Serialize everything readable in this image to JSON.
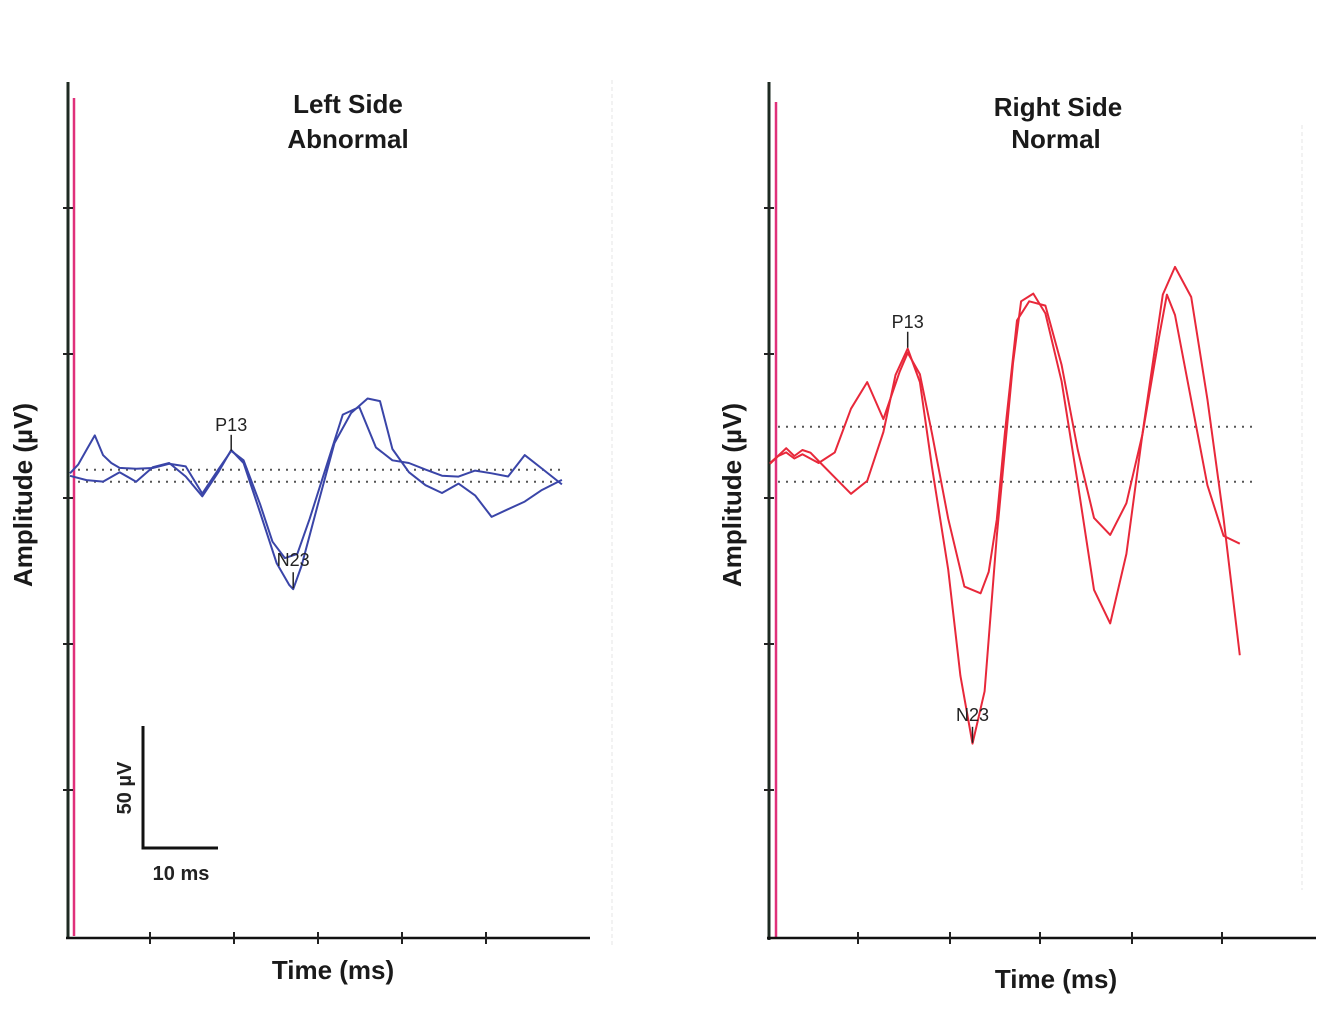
{
  "chart_data": [
    {
      "type": "line",
      "side": "left",
      "title_line1": "Left Side",
      "title_line2": "Abnormal",
      "xlabel": "Time (ms)",
      "ylabel": "Amplitude (µV)",
      "x_units": "ms",
      "y_units": "µV",
      "xlim": [
        0,
        60
      ],
      "ylim": [
        -170,
        170
      ],
      "color": "#3a45a8",
      "thresholds": [
        -1,
        -8
      ],
      "markers": [
        {
          "label": "P13",
          "x": 19.5,
          "y": 10
        },
        {
          "label": "N23",
          "x": 27,
          "y": -70
        }
      ],
      "scale_bar": {
        "amplitude": "50 µV",
        "time": "10 ms"
      },
      "series": [
        {
          "name": "trace-1",
          "x": [
            0,
            1,
            2,
            3,
            4,
            5,
            6,
            8,
            10,
            12,
            14,
            16,
            18,
            19.5,
            21,
            23,
            24.5,
            26,
            27.5,
            29,
            31,
            33,
            35,
            37,
            39,
            41,
            43,
            45,
            47,
            49,
            51,
            53,
            55,
            57,
            59.5
          ],
          "y": [
            -4,
            3,
            11,
            19,
            7,
            2,
            1,
            0,
            0,
            2,
            0,
            -14,
            0,
            10,
            4,
            -22,
            -42,
            -52,
            -50,
            -30,
            0,
            32,
            36,
            12,
            4,
            2,
            0,
            -4,
            -5,
            -2,
            -4,
            -4,
            8,
            0,
            -10
          ]
        },
        {
          "name": "trace-2",
          "x": [
            0,
            2,
            4,
            6,
            8,
            10,
            12,
            14,
            16,
            18,
            19.5,
            21,
            23,
            25,
            26.5,
            27,
            28,
            30,
            32,
            34,
            36,
            37.5,
            39,
            41,
            43,
            45,
            47,
            49,
            51,
            53,
            55,
            57,
            59.5
          ],
          "y": [
            -5,
            -8,
            -7,
            -2,
            -8,
            0,
            2,
            -4,
            -16,
            -2,
            10,
            2,
            -25,
            -55,
            -68,
            -71,
            -58,
            -20,
            15,
            32,
            40,
            38,
            12,
            -2,
            -10,
            -15,
            -10,
            -15,
            -28,
            -24,
            -20,
            -14,
            -6
          ]
        }
      ]
    },
    {
      "type": "line",
      "side": "right",
      "title_line1": "Right Side",
      "title_line2": "Normal",
      "xlabel": "Time (ms)",
      "ylabel": "Amplitude (µV)",
      "x_units": "ms",
      "y_units": "µV",
      "xlim": [
        0,
        60
      ],
      "ylim": [
        -170,
        170
      ],
      "color": "#e8283a",
      "thresholds": [
        24,
        -8
      ],
      "markers": [
        {
          "label": "P13",
          "x": 17,
          "y": 70
        },
        {
          "label": "N23",
          "x": 25,
          "y": -160
        }
      ],
      "series": [
        {
          "name": "trace-1",
          "x": [
            0,
            1,
            2,
            3,
            4,
            5,
            6,
            8,
            10,
            12,
            14,
            15.5,
            17,
            18.5,
            20,
            22,
            23.5,
            25,
            26.5,
            28,
            30,
            31,
            32.5,
            34,
            36,
            38,
            40,
            42,
            44,
            46,
            48.5,
            50,
            52,
            54,
            56,
            58
          ],
          "y": [
            2,
            8,
            12,
            7,
            10,
            8,
            5,
            -5,
            -15,
            -8,
            20,
            55,
            70,
            50,
            0,
            -60,
            -120,
            -160,
            -130,
            -40,
            60,
            98,
            102,
            90,
            50,
            -10,
            -70,
            -90,
            -50,
            20,
            100,
            118,
            100,
            40,
            -30,
            -110
          ]
        },
        {
          "name": "trace-2",
          "x": [
            0,
            1,
            2,
            3,
            4,
            5,
            6,
            8,
            10,
            12,
            14,
            16,
            17,
            18.5,
            20,
            22,
            24,
            26,
            27,
            28,
            29,
            30.5,
            32,
            34,
            36,
            38,
            40,
            42,
            44,
            46,
            48,
            49,
            50,
            52,
            54,
            56,
            58
          ],
          "y": [
            2,
            6,
            10,
            6,
            8,
            5,
            2,
            10,
            35,
            50,
            28,
            55,
            68,
            55,
            20,
            -30,
            -70,
            -72,
            -60,
            -30,
            20,
            85,
            98,
            95,
            60,
            10,
            -30,
            -38,
            -20,
            20,
            75,
            100,
            90,
            40,
            -10,
            -40,
            -45
          ]
        }
      ]
    }
  ]
}
